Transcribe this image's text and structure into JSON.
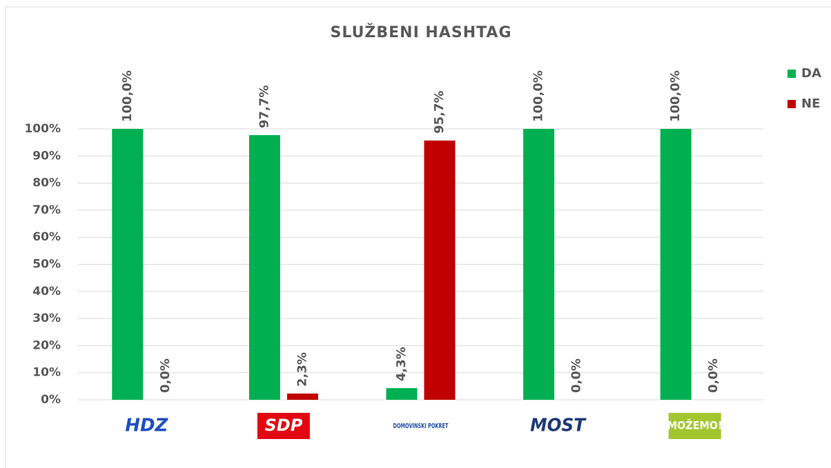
{
  "chart_data": {
    "type": "bar",
    "title": "SLUŽBENI  HASHTAG",
    "categories": [
      "HDZ",
      "SDP",
      "DOMOVINSKI POKRET",
      "MOST",
      "MOŽEMO!"
    ],
    "series": [
      {
        "name": "DA",
        "color": "#00b050",
        "values": [
          100,
          97.7,
          4.3,
          100,
          100
        ],
        "value_labels": [
          "100,0%",
          "97,7%",
          "4,3%",
          "100,0%",
          "100,0%"
        ]
      },
      {
        "name": "NE",
        "color": "#c00000",
        "values": [
          0,
          2.3,
          95.7,
          0,
          0
        ],
        "value_labels": [
          "0,0%",
          "2,3%",
          "95,7%",
          "0,0%",
          "0,0%"
        ]
      }
    ],
    "ylim": [
      0,
      100
    ],
    "yticks": [
      {
        "value": 0,
        "label": "0%"
      },
      {
        "value": 10,
        "label": "10%"
      },
      {
        "value": 20,
        "label": "20%"
      },
      {
        "value": 30,
        "label": "30%"
      },
      {
        "value": 40,
        "label": "40%"
      },
      {
        "value": 50,
        "label": "50%"
      },
      {
        "value": 60,
        "label": "60%"
      },
      {
        "value": 70,
        "label": "70%"
      },
      {
        "value": 80,
        "label": "80%"
      },
      {
        "value": 90,
        "label": "90%"
      },
      {
        "value": 100,
        "label": "100%"
      }
    ],
    "grid": true,
    "legend": "right"
  }
}
